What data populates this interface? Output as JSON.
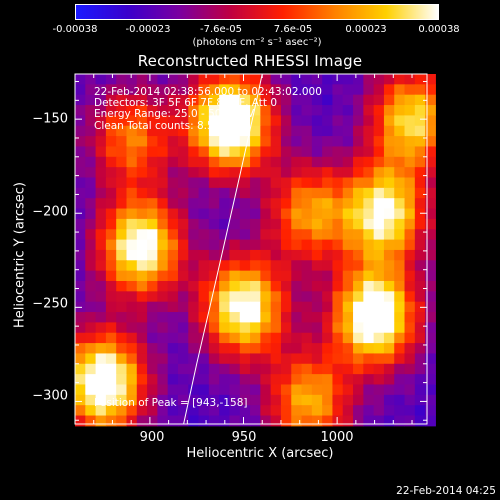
{
  "colorbar": {
    "ticks": [
      "-0.00038",
      "-0.00023",
      "-7.6e-05",
      "7.6e-05",
      "0.00023",
      "0.00038"
    ],
    "unit": "(photons cm⁻² s⁻¹ asec⁻²)",
    "stops": [
      "#1a1aff",
      "#3a00cc",
      "#7a00a0",
      "#c00040",
      "#ff2000",
      "#ff8000",
      "#ffd000",
      "#ffffff"
    ]
  },
  "annotations": {
    "line1": "22-Feb-2014 02:38:56.000 to 02:43:02.000",
    "line2": "Detectors: 3F 5F 6F 7F 8F 9F, Att 0",
    "line3": "Energy Range: 25.0 - 50.0 keV",
    "line4": "Clean    Total counts: 8.56E+03",
    "peak": "Position of Peak = [943,-158]"
  },
  "timestamp": "22-Feb-2014 04:25",
  "chart_data": {
    "type": "heatmap",
    "title": "Reconstructed RHESSI Image",
    "xlabel": "Heliocentric X (arcsec)",
    "ylabel": "Heliocentric Y (arcsec)",
    "xlim": [
      860,
      1048
    ],
    "ylim": [
      -312,
      -126
    ],
    "xticks": [
      900,
      950,
      1000
    ],
    "yticks": [
      -150,
      -200,
      -250,
      -300
    ],
    "x_tick_labels": [
      "900",
      "950",
      "1000"
    ],
    "y_tick_labels": [
      "−150",
      "−200",
      "−250",
      "−300"
    ],
    "color_range": [
      -0.00038,
      0.00038
    ],
    "limb_curve": [
      [
        918,
        -312
      ],
      [
        925,
        -280
      ],
      [
        932,
        -250
      ],
      [
        940,
        -215
      ],
      [
        948,
        -180
      ],
      [
        957,
        -140
      ],
      [
        960,
        -126
      ]
    ],
    "sources": [
      {
        "x": 943,
        "y": -152,
        "amp": 1.0
      },
      {
        "x": 1020,
        "y": -255,
        "amp": 0.95
      },
      {
        "x": 875,
        "y": -290,
        "amp": 0.95
      },
      {
        "x": 950,
        "y": -250,
        "amp": 0.85
      },
      {
        "x": 895,
        "y": -218,
        "amp": 0.85
      },
      {
        "x": 1025,
        "y": -200,
        "amp": 0.8
      },
      {
        "x": 1040,
        "y": -150,
        "amp": 0.7
      },
      {
        "x": 985,
        "y": -200,
        "amp": 0.55
      },
      {
        "x": 890,
        "y": -160,
        "amp": 0.5
      },
      {
        "x": 985,
        "y": -300,
        "amp": 0.6
      }
    ]
  }
}
